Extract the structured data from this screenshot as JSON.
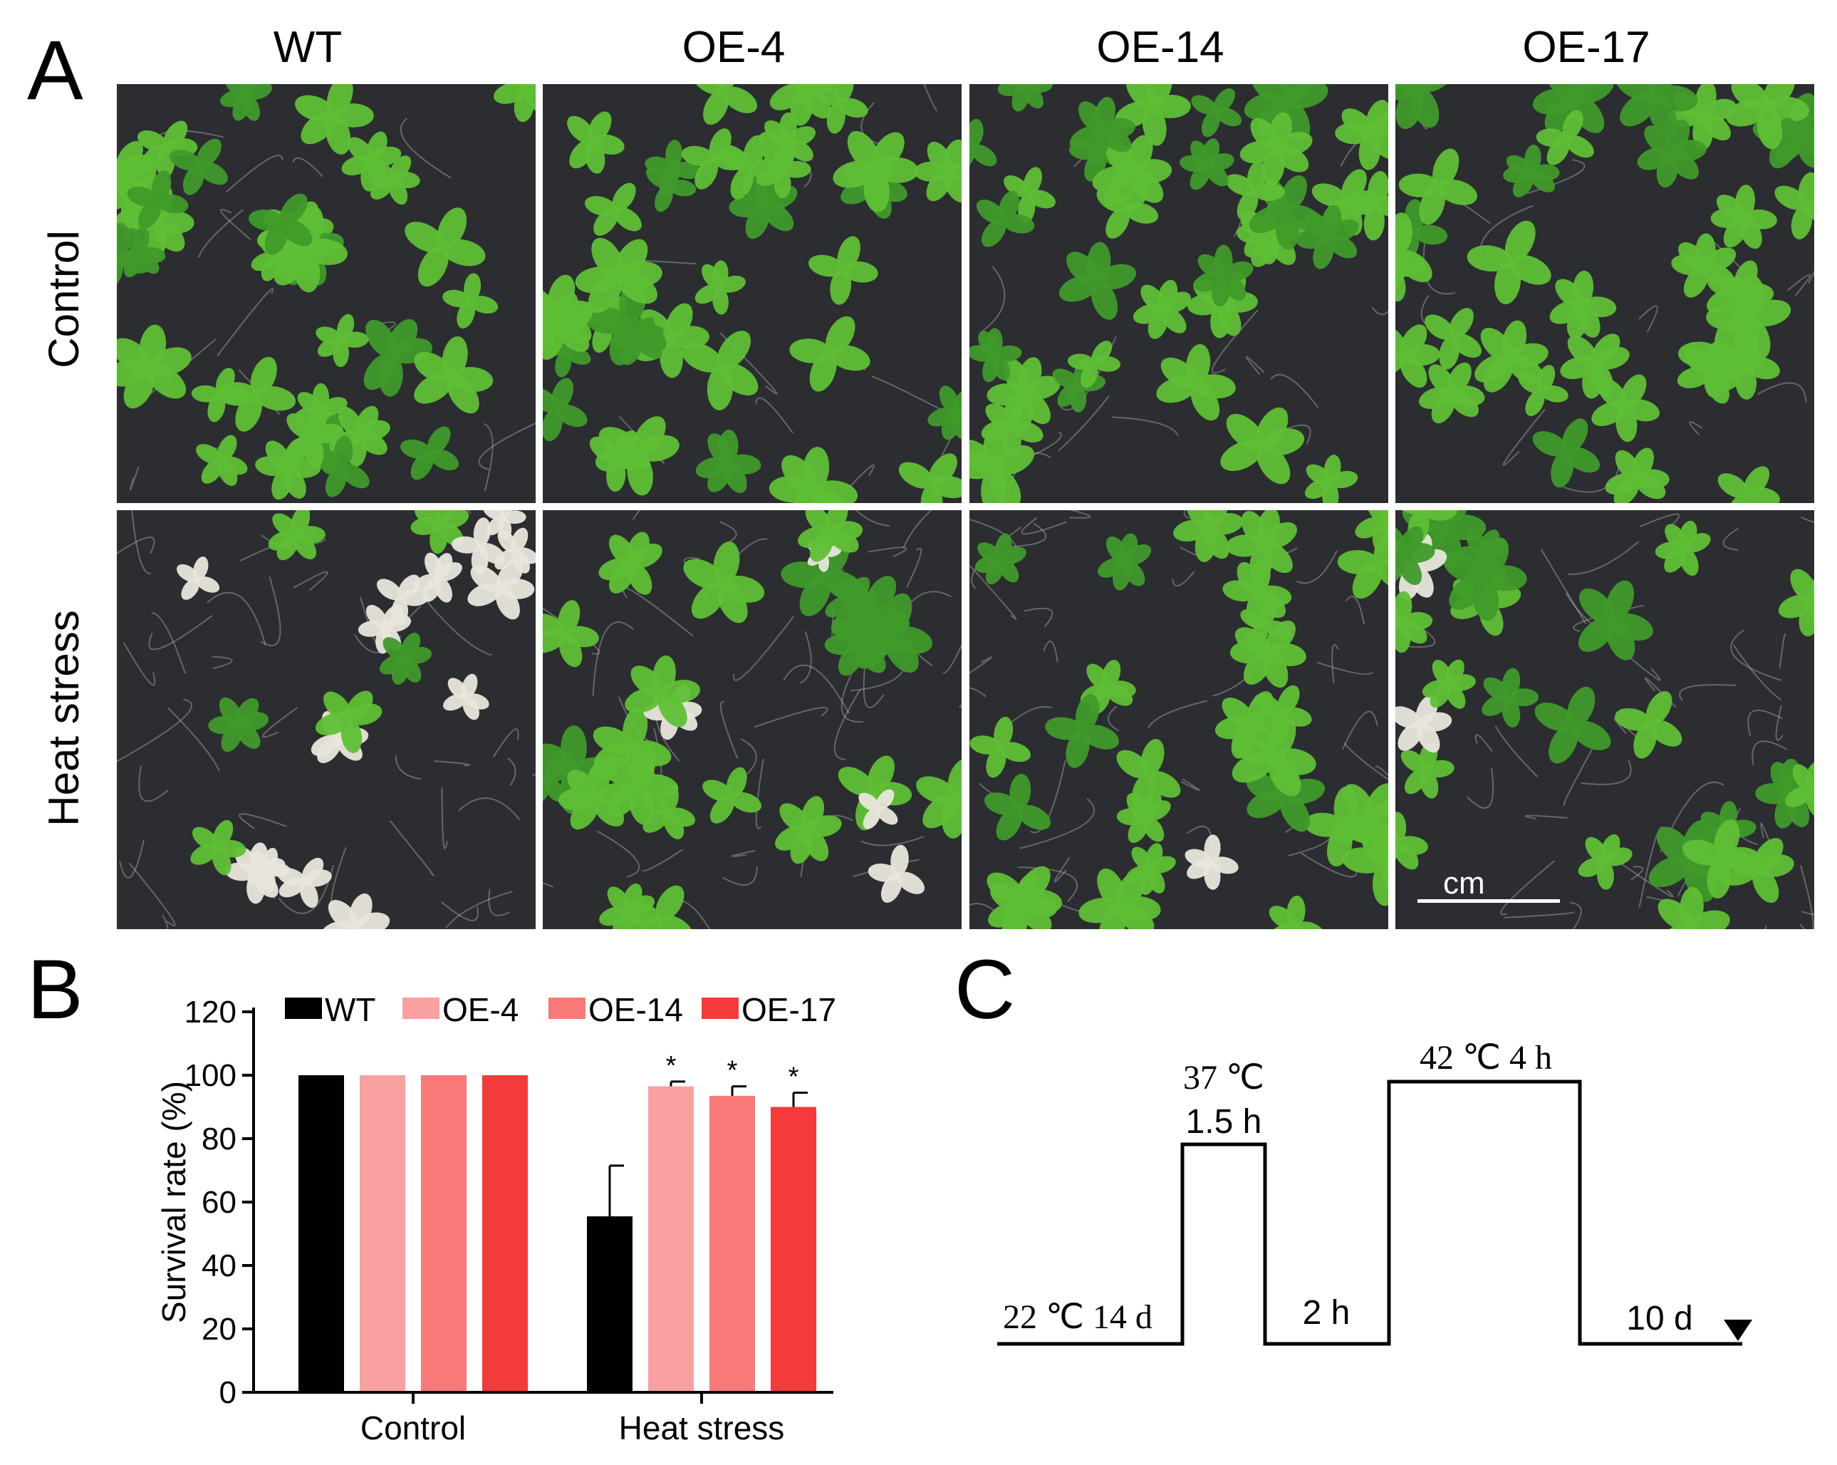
{
  "panel_a": {
    "letter": "A",
    "columns": [
      "WT",
      "OE-4",
      "OE-14",
      "OE-17"
    ],
    "rows": [
      "Control",
      "Heat stress"
    ],
    "scale_bar_label": "cm",
    "colors": {
      "leaf": "#5fbf35",
      "leaf_dark": "#3f9a2a",
      "bleached": "#e8e6dc",
      "medium": "#2b2d31"
    }
  },
  "panel_b": {
    "letter": "B"
  },
  "panel_c": {
    "letter": "C",
    "labels": {
      "base": "22 ℃ 14 d",
      "pulse1_temp": "37 ℃",
      "pulse1_time": "1.5 h",
      "gap": "2 h",
      "pulse2": "42 ℃ 4 h",
      "recovery": "10 d"
    },
    "timeline": {
      "segments": [
        {
          "label": "22 ℃ 14 d",
          "level": "low"
        },
        {
          "label": "37 ℃ 1.5 h",
          "level": "mid"
        },
        {
          "label": "2 h",
          "level": "low"
        },
        {
          "label": "42 ℃ 4 h",
          "level": "high"
        },
        {
          "label": "10 d",
          "level": "low"
        }
      ],
      "end_marker": "down-triangle"
    }
  },
  "chart_data": {
    "type": "bar",
    "categories": [
      "Control",
      "Heat stress"
    ],
    "series": [
      {
        "name": "WT",
        "values": [
          100,
          55.5
        ],
        "errors": [
          0,
          16
        ],
        "color": "#000000"
      },
      {
        "name": "OE-4",
        "values": [
          100,
          96.5
        ],
        "errors": [
          0,
          1.5
        ],
        "color": "#f9a0a0"
      },
      {
        "name": "OE-14",
        "values": [
          100,
          93.5
        ],
        "errors": [
          0,
          3
        ],
        "color": "#f97878"
      },
      {
        "name": "OE-17",
        "values": [
          100,
          90
        ],
        "errors": [
          0,
          4.5
        ],
        "color": "#f43a3a"
      }
    ],
    "significance": {
      "Heat stress": [
        "",
        "*",
        "*",
        "*"
      ]
    },
    "ylabel": "Survival rate (%)",
    "xlabel": "",
    "ylim": [
      0,
      120
    ],
    "yticks": [
      0,
      20,
      40,
      60,
      80,
      100,
      120
    ],
    "legend_position": "top"
  }
}
